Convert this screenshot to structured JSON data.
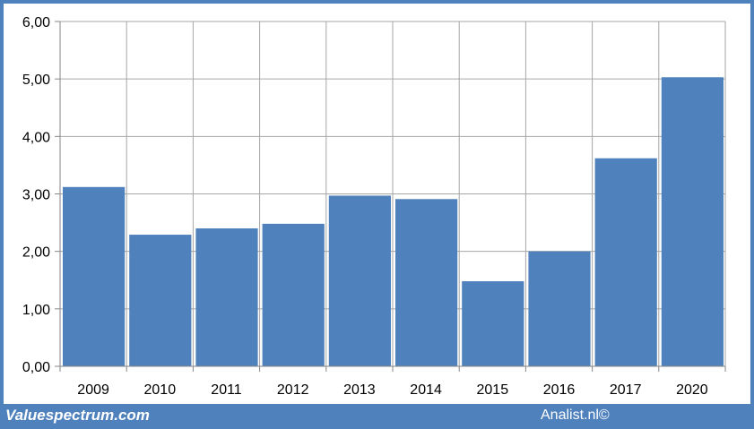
{
  "chart_data": {
    "type": "bar",
    "title": "",
    "xlabel": "",
    "ylabel": "",
    "categories": [
      "2009",
      "2010",
      "2011",
      "2012",
      "2013",
      "2014",
      "2015",
      "2016",
      "2017",
      "2020"
    ],
    "values": [
      3.12,
      2.29,
      2.4,
      2.48,
      2.97,
      2.91,
      1.48,
      2.0,
      3.62,
      5.03
    ],
    "ylim": [
      0,
      6
    ],
    "yticks": [
      "0,00",
      "1,00",
      "2,00",
      "3,00",
      "4,00",
      "5,00",
      "6,00"
    ],
    "grid": true,
    "bar_color": "#4f81bd",
    "legend": "none"
  },
  "footer": {
    "brand": "Valuespectrum.com",
    "credit": "Analist.nl©"
  },
  "colors": {
    "frame": "#4f81bd",
    "grid": "#a6a6a6",
    "bar": "#4f81bd"
  }
}
